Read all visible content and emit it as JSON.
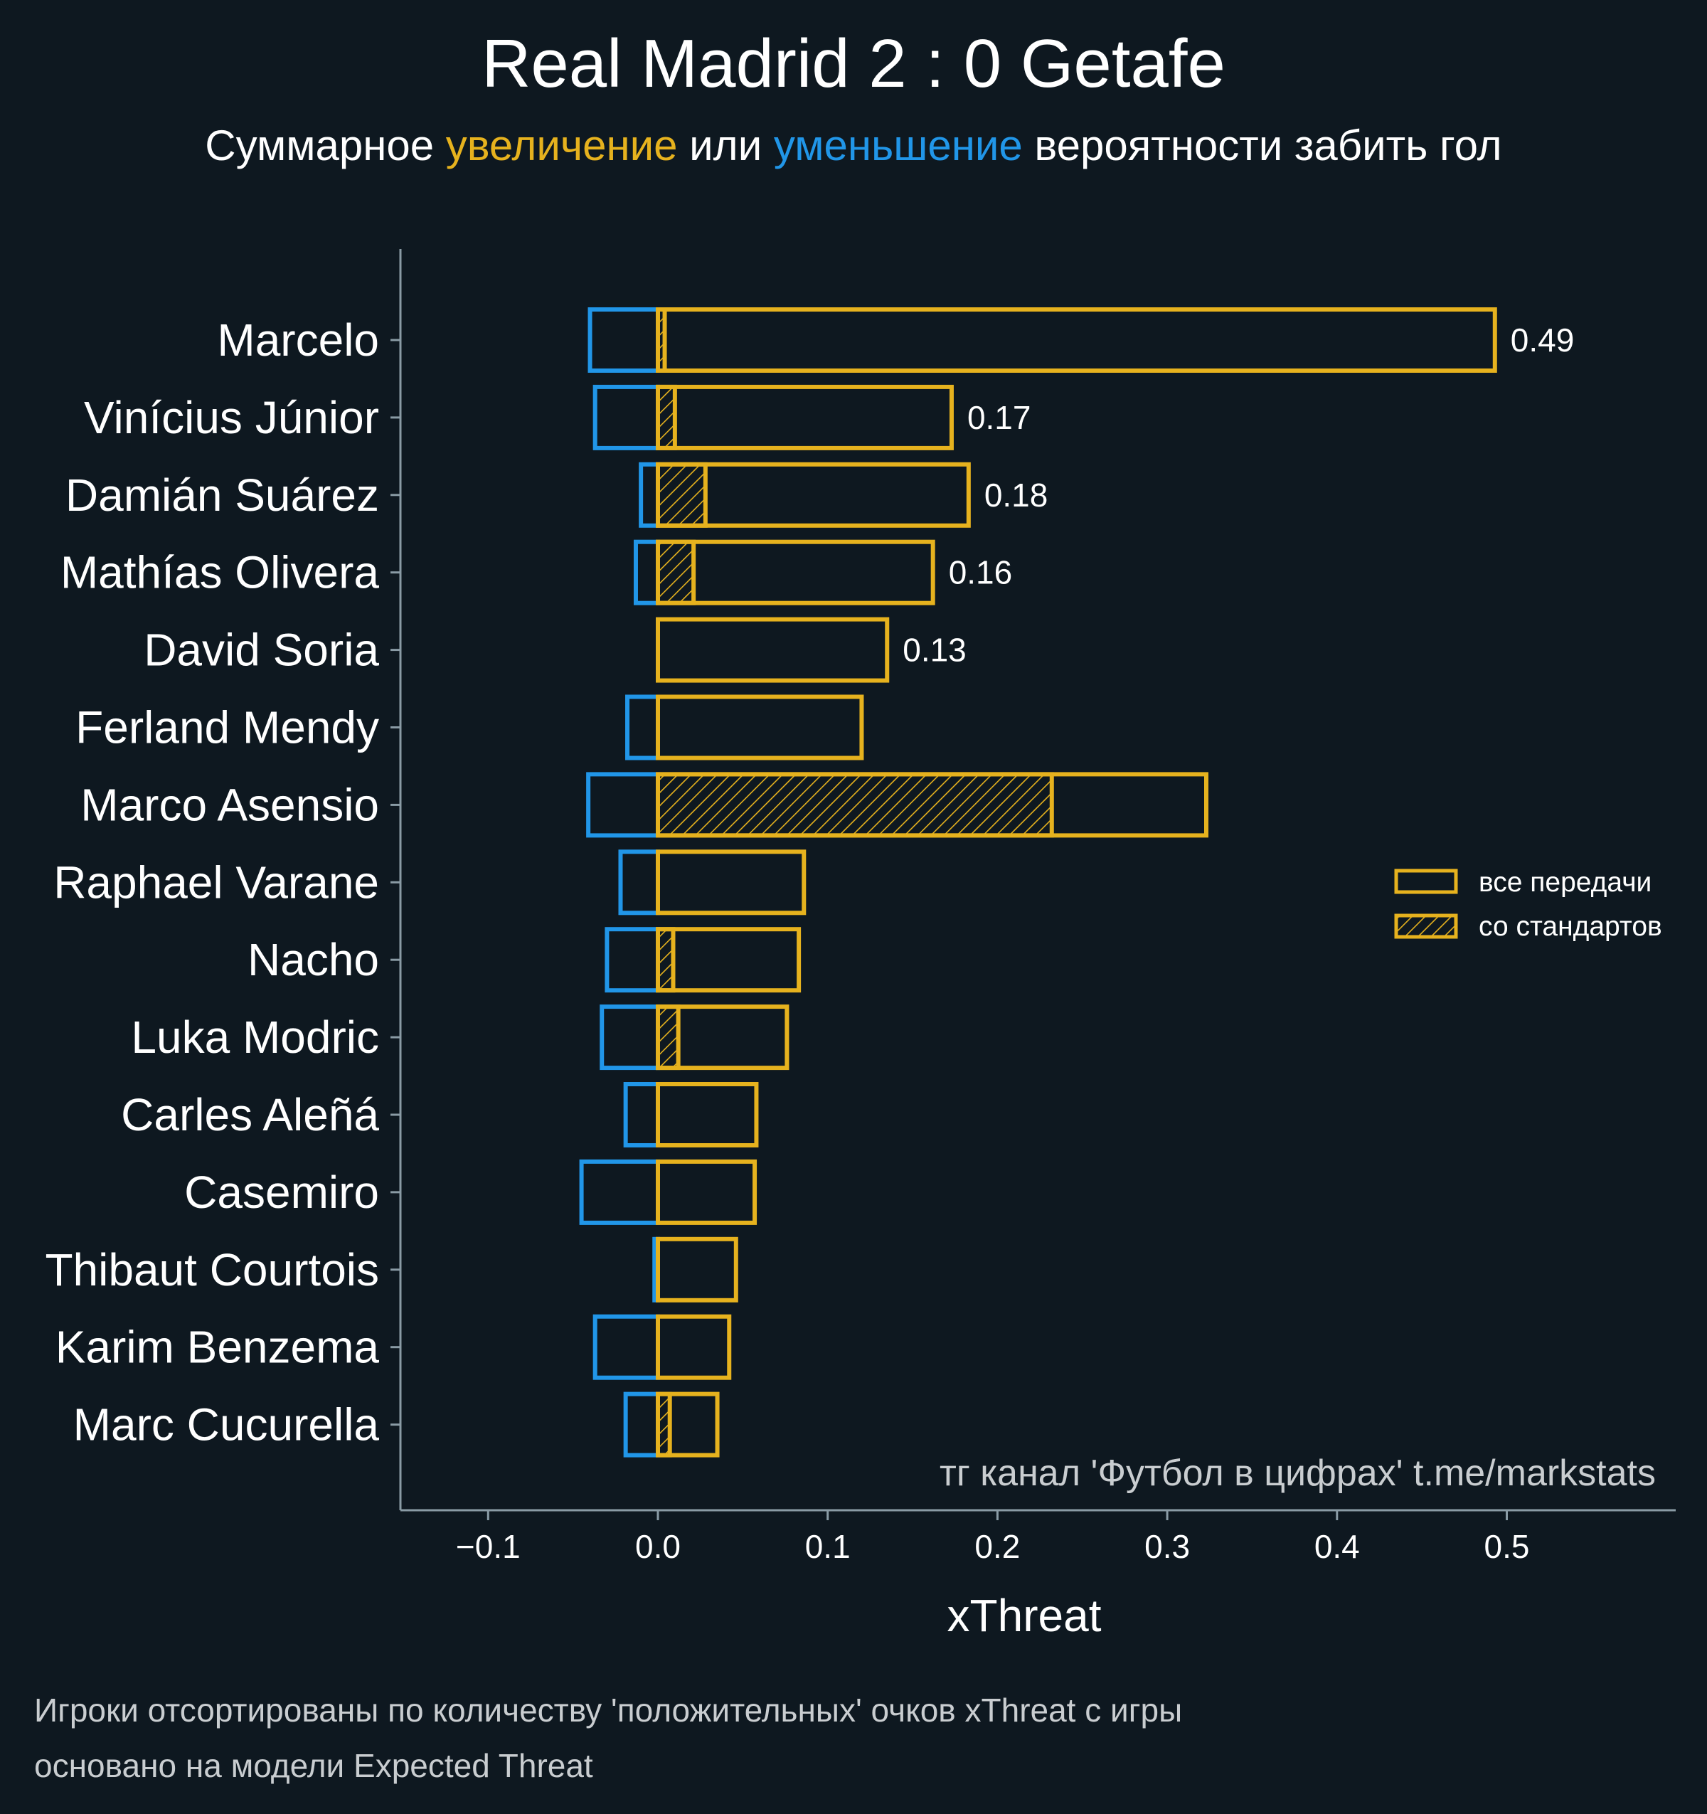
{
  "title": "Real Madrid 2 : 0 Getafe",
  "subtitle": {
    "part1": "Суммарное ",
    "highlight_up": "увеличение",
    "part2": " или ",
    "highlight_down": "уменьшение",
    "part3": " вероятности забить гол"
  },
  "colors": {
    "background": "#0e1820",
    "positive": "#e6b21e",
    "negative": "#2196e8",
    "text": "#ffffff",
    "axis": "#8a9ba5",
    "muted": "#c9cdd0"
  },
  "legend": {
    "all_passes": "все передачи",
    "set_pieces": "со стандартов"
  },
  "watermark": "тг канал 'Футбол в цифрах'  t.me/markstats",
  "footnote": {
    "line1": "Игроки отсортированы по количеству 'положительных' очков xThreat с игры",
    "line2": "основано на модели Expected Threat"
  },
  "chart_data": {
    "type": "bar",
    "orientation": "horizontal",
    "xlabel": "xThreat",
    "xlim": [
      -0.155,
      0.595
    ],
    "xticks": [
      -0.1,
      0.0,
      0.1,
      0.2,
      0.3,
      0.4,
      0.5
    ],
    "xtick_labels": [
      "−0.1",
      "0.0",
      "0.1",
      "0.2",
      "0.3",
      "0.4",
      "0.5"
    ],
    "categories": [
      "Marcelo",
      "Vinícius Júnior",
      "Damián Suárez",
      "Mathías Olivera",
      "David Soria",
      "Ferland Mendy",
      "Marco Asensio",
      "Raphael Varane",
      "Nacho",
      "Luka Modric",
      "Carles Aleñá",
      "Casemiro",
      "Thibaut Courtois",
      "Karim Benzema",
      "Marc Cucurella"
    ],
    "series": [
      {
        "name": "увеличение (все передачи)",
        "values": [
          0.493,
          0.173,
          0.183,
          0.162,
          0.135,
          0.12,
          0.323,
          0.086,
          0.083,
          0.076,
          0.058,
          0.057,
          0.046,
          0.042,
          0.035
        ]
      },
      {
        "name": "со стандартов",
        "values": [
          0.004,
          0.01,
          0.028,
          0.021,
          0.0,
          0.0,
          0.232,
          0.0,
          0.009,
          0.012,
          0.0,
          0.0,
          0.0,
          0.0,
          0.007
        ]
      },
      {
        "name": "уменьшение",
        "values": [
          -0.04,
          -0.037,
          -0.01,
          -0.013,
          0.0,
          -0.018,
          -0.041,
          -0.022,
          -0.03,
          -0.033,
          -0.019,
          -0.045,
          -0.002,
          -0.037,
          -0.019
        ]
      }
    ],
    "value_labels": [
      "0.49",
      "0.17",
      "0.18",
      "0.16",
      "0.13",
      "",
      "",
      "",
      "",
      "",
      "",
      "",
      "",
      "",
      ""
    ],
    "legend_position": "right"
  }
}
